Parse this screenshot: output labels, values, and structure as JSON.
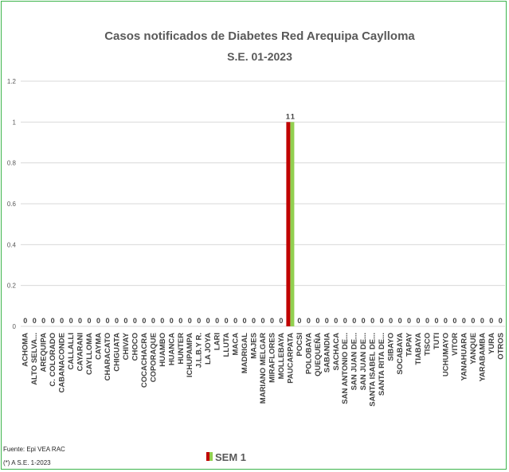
{
  "footer": {
    "source": "Fuente: Epi VEA RAC",
    "note": "(*) A S.E. 1-2023"
  },
  "colors": {
    "series_dark": "#c00000",
    "series_light": "#92d050",
    "grid": "#d9d9d9",
    "frame": "#3cb44b"
  },
  "chart_data": {
    "type": "bar",
    "title": "Casos notificados de Diabetes  Red Arequipa Caylloma",
    "subtitle": "S.E. 01-2023",
    "xlabel": "",
    "ylabel": "",
    "ylim": [
      0,
      1.2
    ],
    "yticks": [
      0,
      0.2,
      0.4,
      0.6,
      0.8,
      1,
      1.2
    ],
    "grid": true,
    "legend_position": "bottom",
    "categories": [
      "ACHOMA",
      "ALTO SELVA...",
      "AREQUIPA",
      "C. COLORADO",
      "CABANACONDE",
      "CALLALLI",
      "CAYARANI",
      "CAYLLOMA",
      "CAYMA",
      "CHARACATO",
      "CHIGUATA",
      "CHIVAY",
      "CHOCO",
      "COCACHACRA",
      "COPORAQUE",
      "HUAMBO",
      "HUANCA",
      "HUNTER",
      "ICHUPAMPA",
      "J.L.B.Y R.",
      "LA JOYA",
      "LARI",
      "LLUTA",
      "MACA",
      "MADRIGAL",
      "MAJES",
      "MARIANO MELGAR",
      "MIRAFLORES",
      "MOLLEBAYA",
      "PAUCARPATA",
      "POCSI",
      "POLOBAYA",
      "QUEQUEÑA",
      "SABANDIA",
      "SACHACA",
      "SAN ANTONIO DE...",
      "SAN JUAN DE...",
      "SAN JUAN DE...",
      "SANTA ISABEL DE...",
      "SANTA RITA DE...",
      "SIBAYO",
      "SOCABAYA",
      "TAPAY",
      "TIABAYA",
      "TISCO",
      "TUTI",
      "UCHUMAYO",
      "VITOR",
      "YANAHUARA",
      "YANQUE",
      "YARABAMBA",
      "YURA",
      "OTROS"
    ],
    "series": [
      {
        "name": "SEM 1",
        "values": [
          0,
          0,
          0,
          0,
          0,
          0,
          0,
          0,
          0,
          0,
          0,
          0,
          0,
          0,
          0,
          0,
          0,
          0,
          0,
          0,
          0,
          0,
          0,
          0,
          0,
          0,
          0,
          0,
          0,
          1,
          0,
          0,
          0,
          0,
          0,
          0,
          0,
          0,
          0,
          0,
          0,
          0,
          0,
          0,
          0,
          0,
          0,
          0,
          0,
          0,
          0,
          0,
          0
        ]
      }
    ],
    "highlight_label": "1"
  }
}
